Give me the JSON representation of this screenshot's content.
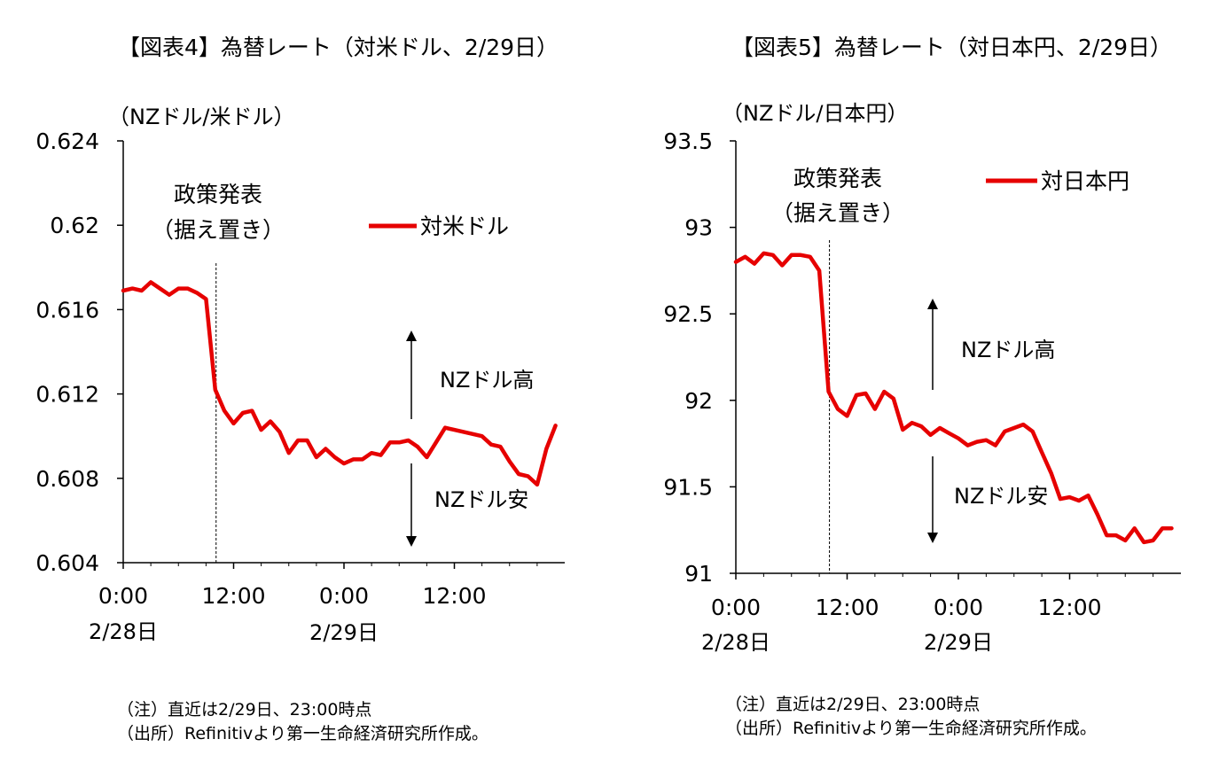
{
  "chart_data": [
    {
      "type": "line",
      "title": "【図表4】為替レート（対米ドル、2/29日）",
      "ylabel": "（NZドル/米ドル）",
      "ylim": [
        0.604,
        0.624
      ],
      "yticks": [
        "0.604",
        "0.608",
        "0.612",
        "0.616",
        "0.62",
        "0.624"
      ],
      "ytick_values": [
        0.604,
        0.608,
        0.612,
        0.616,
        0.62,
        0.624
      ],
      "xlim": [
        0,
        48
      ],
      "xticks": [
        {
          "x": 0,
          "time": "0:00",
          "date": "2/28日"
        },
        {
          "x": 12,
          "time": "12:00",
          "date": ""
        },
        {
          "x": 24,
          "time": "0:00",
          "date": "2/29日"
        },
        {
          "x": 36,
          "time": "12:00",
          "date": ""
        }
      ],
      "legend": "対米ドル",
      "event_x": 10,
      "event_label": [
        "政策発表",
        "（据え置き）"
      ],
      "up_label": "NZドル高",
      "down_label": "NZドル安",
      "series": [
        {
          "name": "対米ドル",
          "x": [
            0,
            1,
            2,
            3,
            4,
            5,
            6,
            7,
            8,
            9,
            10,
            11,
            12,
            13,
            14,
            15,
            16,
            17,
            18,
            19,
            20,
            21,
            22,
            23,
            24,
            25,
            26,
            27,
            28,
            29,
            30,
            31,
            32,
            33,
            34,
            35,
            36,
            37,
            38,
            39,
            40,
            41,
            42,
            43,
            44,
            45,
            46,
            47
          ],
          "values": [
            0.6169,
            0.617,
            0.6169,
            0.6173,
            0.617,
            0.6167,
            0.617,
            0.617,
            0.6168,
            0.6165,
            0.6122,
            0.6112,
            0.6106,
            0.6111,
            0.6112,
            0.6103,
            0.6107,
            0.6102,
            0.6092,
            0.6098,
            0.6098,
            0.609,
            0.6094,
            0.609,
            0.6087,
            0.6089,
            0.6089,
            0.6092,
            0.6091,
            0.6097,
            0.6097,
            0.6098,
            0.6095,
            0.609,
            0.6097,
            0.6104,
            0.6103,
            0.6102,
            0.6101,
            0.61,
            0.6096,
            0.6095,
            0.6088,
            0.6082,
            0.6081,
            0.6077,
            0.6094,
            0.6105
          ]
        }
      ],
      "colors": {
        "line": "#e60000"
      }
    },
    {
      "type": "line",
      "title": "【図表5】為替レート（対日本円、2/29日）",
      "ylabel": "（NZドル/日本円）",
      "ylim": [
        91,
        93.5
      ],
      "yticks": [
        "91",
        "91.5",
        "92",
        "92.5",
        "93",
        "93.5"
      ],
      "ytick_values": [
        91,
        91.5,
        92,
        92.5,
        93,
        93.5
      ],
      "xlim": [
        0,
        48
      ],
      "xticks": [
        {
          "x": 0,
          "time": "0:00",
          "date": "2/28日"
        },
        {
          "x": 12,
          "time": "12:00",
          "date": ""
        },
        {
          "x": 24,
          "time": "0:00",
          "date": "2/29日"
        },
        {
          "x": 36,
          "time": "12:00",
          "date": ""
        }
      ],
      "legend": "対日本円",
      "event_x": 10,
      "event_label": [
        "政策発表",
        "（据え置き）"
      ],
      "up_label": "NZドル高",
      "down_label": "NZドル安",
      "series": [
        {
          "name": "対日本円",
          "x": [
            0,
            1,
            2,
            3,
            4,
            5,
            6,
            7,
            8,
            9,
            10,
            11,
            12,
            13,
            14,
            15,
            16,
            17,
            18,
            19,
            20,
            21,
            22,
            23,
            24,
            25,
            26,
            27,
            28,
            29,
            30,
            31,
            32,
            33,
            34,
            35,
            36,
            37,
            38,
            39,
            40,
            41,
            42,
            43,
            44,
            45,
            46,
            47
          ],
          "values": [
            92.8,
            92.83,
            92.79,
            92.85,
            92.84,
            92.78,
            92.84,
            92.84,
            92.83,
            92.75,
            92.05,
            91.95,
            91.91,
            92.03,
            92.04,
            91.95,
            92.05,
            92.01,
            91.83,
            91.87,
            91.85,
            91.8,
            91.84,
            91.81,
            91.78,
            91.74,
            91.76,
            91.77,
            91.74,
            91.82,
            91.84,
            91.86,
            91.82,
            91.7,
            91.58,
            91.43,
            91.44,
            91.42,
            91.45,
            91.34,
            91.22,
            91.22,
            91.19,
            91.26,
            91.18,
            91.19,
            91.26,
            91.26
          ]
        }
      ],
      "colors": {
        "line": "#e60000"
      }
    }
  ],
  "notes": [
    {
      "line1": "（注）直近は2/29日、23:00時点",
      "line2": "（出所）Refinitivより第一生命経済研究所作成。"
    },
    {
      "line1": "（注）直近は2/29日、23:00時点",
      "line2": "（出所）Refinitivより第一生命経済研究所作成。"
    }
  ]
}
